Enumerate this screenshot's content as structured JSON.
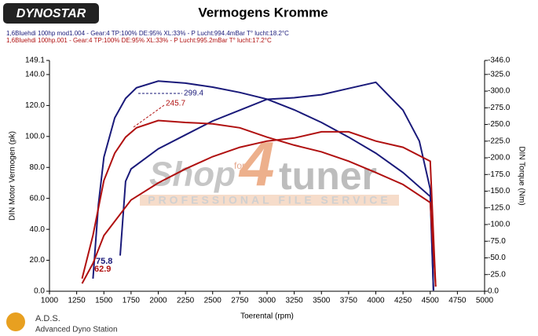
{
  "chart_data": {
    "type": "line",
    "title": "Vermogens Kromme",
    "logo": "DYNOSTAR",
    "footer": {
      "brand": "A.D.S.",
      "subtitle": "Advanced Dyno Station"
    },
    "watermark": {
      "shop": "Shop",
      "for": "for",
      "four": "4",
      "tuner": "tuner",
      "service": "PROFESSIONAL FILE SERVICE"
    },
    "x_label": "Toerental (rpm)",
    "y_label": "DIN Motor Vermogen (pk)",
    "y2_label": "DIN Torque (Nm)",
    "xlim": [
      1000,
      5000
    ],
    "xticks": [
      1000,
      1250,
      1500,
      1750,
      2000,
      2250,
      2500,
      2750,
      3000,
      3250,
      3500,
      3750,
      4000,
      4250,
      4500,
      4750,
      5000
    ],
    "ylim": [
      0,
      149.1
    ],
    "yticks": [
      {
        "value": 0,
        "label": "0.0"
      },
      {
        "value": 20,
        "label": "20.0"
      },
      {
        "value": 40,
        "label": "40.0"
      },
      {
        "value": 60,
        "label": "60.0"
      },
      {
        "value": 80,
        "label": "80.0"
      },
      {
        "value": 100,
        "label": "100.0"
      },
      {
        "value": 120,
        "label": "120.0"
      },
      {
        "value": 140,
        "label": "140.0"
      },
      149.1
    ],
    "y2lim": [
      0,
      346
    ],
    "y2ticks": [
      {
        "value": 0,
        "label": "0.0"
      },
      {
        "value": 25,
        "label": "-25.0"
      },
      {
        "value": 50,
        "label": "-50.0"
      },
      {
        "value": 75,
        "label": "-75.0"
      },
      {
        "value": 100,
        "label": "-100.0"
      },
      {
        "value": 125,
        "label": "-125.0"
      },
      {
        "value": 150,
        "label": "-150.0"
      },
      {
        "value": 175,
        "label": "-175.0"
      },
      {
        "value": 200,
        "label": "-200.0"
      },
      {
        "value": 225,
        "label": "-225.0"
      },
      {
        "value": 250,
        "label": "-250.0"
      },
      {
        "value": 275,
        "label": "-275.0"
      },
      {
        "value": 300,
        "label": "-300.0"
      },
      {
        "value": 325,
        "label": "-325.0"
      },
      {
        "value": 346,
        "label": "-346.0"
      }
    ],
    "runs": [
      {
        "text": "1,6Bluehdi 100hp mod1.004 - Gear:4 TP:100% DE:95% XL:33%    - P Lucht:994.4mBar T° lucht:18.2°C",
        "color": "#1a1a7a"
      },
      {
        "text": "1,6Bluehdi 100hp.001 - Gear:4 TP:100% DE:95% XL:33%    - P Lucht:995.2mBar T° lucht:17.2°C",
        "color": "#b01010"
      }
    ],
    "series": [
      {
        "color": "#1a1a7a",
        "axis": "y2",
        "x": [
          1400,
          1450,
          1500,
          1600,
          1700,
          1800,
          2000,
          2250,
          2500,
          2750,
          3000,
          3250,
          3500,
          3750,
          4000,
          4250,
          4500,
          4530
        ],
        "values": [
          19,
          130,
          201,
          260,
          289,
          305,
          315,
          312,
          306,
          298,
          288,
          272,
          253,
          231,
          207,
          178,
          142,
          1
        ]
      },
      {
        "color": "#1a1a7a",
        "x": [
          1650,
          1700,
          1750,
          2000,
          2250,
          2500,
          2750,
          3000,
          3250,
          3500,
          3750,
          4000,
          4250,
          4400,
          4500,
          4530
        ],
        "values": [
          23,
          71,
          79,
          92,
          101,
          110,
          117,
          124,
          125,
          127,
          131,
          135,
          117,
          97,
          66,
          0.5
        ]
      },
      {
        "color": "#b01010",
        "axis": "y2",
        "x": [
          1300,
          1400,
          1500,
          1600,
          1700,
          1800,
          2000,
          2250,
          2500,
          2750,
          3000,
          3250,
          3500,
          3750,
          4000,
          4250,
          4500,
          4550
        ],
        "values": [
          19,
          84,
          166,
          207,
          231,
          245,
          256,
          253,
          251,
          245,
          231,
          219,
          209,
          195,
          178,
          160,
          133,
          7
        ]
      },
      {
        "color": "#b01010",
        "x": [
          1300,
          1400,
          1500,
          1750,
          2000,
          2250,
          2500,
          2750,
          3000,
          3250,
          3500,
          3750,
          4000,
          4250,
          4500,
          4550
        ],
        "values": [
          5,
          18,
          36,
          59,
          70,
          79,
          87,
          93,
          97,
          99,
          103,
          103,
          97,
          93,
          84,
          3
        ]
      }
    ],
    "annotations": [
      {
        "text": "299.4",
        "color": "#1a1a7a"
      },
      {
        "text": "245.7",
        "color": "#b01010"
      },
      {
        "text": "75.8",
        "color": "#1a1a7a"
      },
      {
        "text": "62.9",
        "color": "#b01010"
      }
    ]
  }
}
